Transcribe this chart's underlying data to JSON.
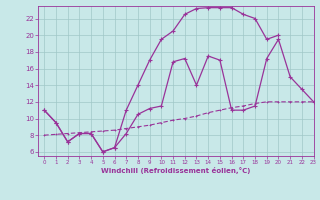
{
  "xlabel": "Windchill (Refroidissement éolien,°C)",
  "bg_color": "#c8e8e8",
  "grid_color": "#a0c8c8",
  "line_color": "#993399",
  "line1_x": [
    0,
    1,
    2,
    3,
    4,
    5,
    6,
    7,
    8,
    9,
    10,
    11,
    12,
    13,
    14,
    15,
    16,
    17,
    18,
    19,
    20,
    21,
    22,
    23
  ],
  "line1_y": [
    11,
    9.5,
    7.2,
    8.2,
    8.2,
    6.0,
    6.5,
    8.2,
    10.5,
    11.2,
    11.5,
    16.8,
    17.2,
    14.0,
    17.5,
    17.0,
    11.0,
    11.0,
    11.5,
    17.2,
    19.5,
    15.0,
    13.5,
    12.0
  ],
  "line2_x": [
    0,
    1,
    2,
    3,
    4,
    5,
    6,
    7,
    8,
    9,
    10,
    11,
    12,
    13,
    14,
    15,
    16,
    17,
    18,
    19,
    20,
    21,
    22,
    23
  ],
  "line2_y": [
    11,
    9.5,
    7.2,
    8.2,
    8.2,
    6.0,
    6.5,
    11.0,
    14.0,
    17.0,
    19.5,
    20.5,
    22.5,
    23.2,
    23.3,
    23.3,
    23.3,
    22.5,
    22.0,
    19.5,
    20.0,
    null,
    null,
    null
  ],
  "line3_x": [
    0,
    1,
    2,
    3,
    4,
    5,
    6,
    7,
    8,
    9,
    10,
    11,
    12,
    13,
    14,
    15,
    16,
    17,
    18,
    19,
    20,
    21,
    22,
    23
  ],
  "line3_y": [
    8.0,
    8.1,
    8.2,
    8.3,
    8.4,
    8.5,
    8.6,
    8.8,
    9.0,
    9.2,
    9.5,
    9.8,
    10.0,
    10.3,
    10.7,
    11.0,
    11.3,
    11.5,
    11.8,
    12.0,
    12.0,
    12.0,
    12.0,
    12.0
  ],
  "xlim": [
    -0.5,
    23
  ],
  "ylim": [
    5.5,
    23.5
  ],
  "xticks": [
    0,
    1,
    2,
    3,
    4,
    5,
    6,
    7,
    8,
    9,
    10,
    11,
    12,
    13,
    14,
    15,
    16,
    17,
    18,
    19,
    20,
    21,
    22,
    23
  ],
  "yticks": [
    6,
    8,
    10,
    12,
    14,
    16,
    18,
    20,
    22
  ]
}
